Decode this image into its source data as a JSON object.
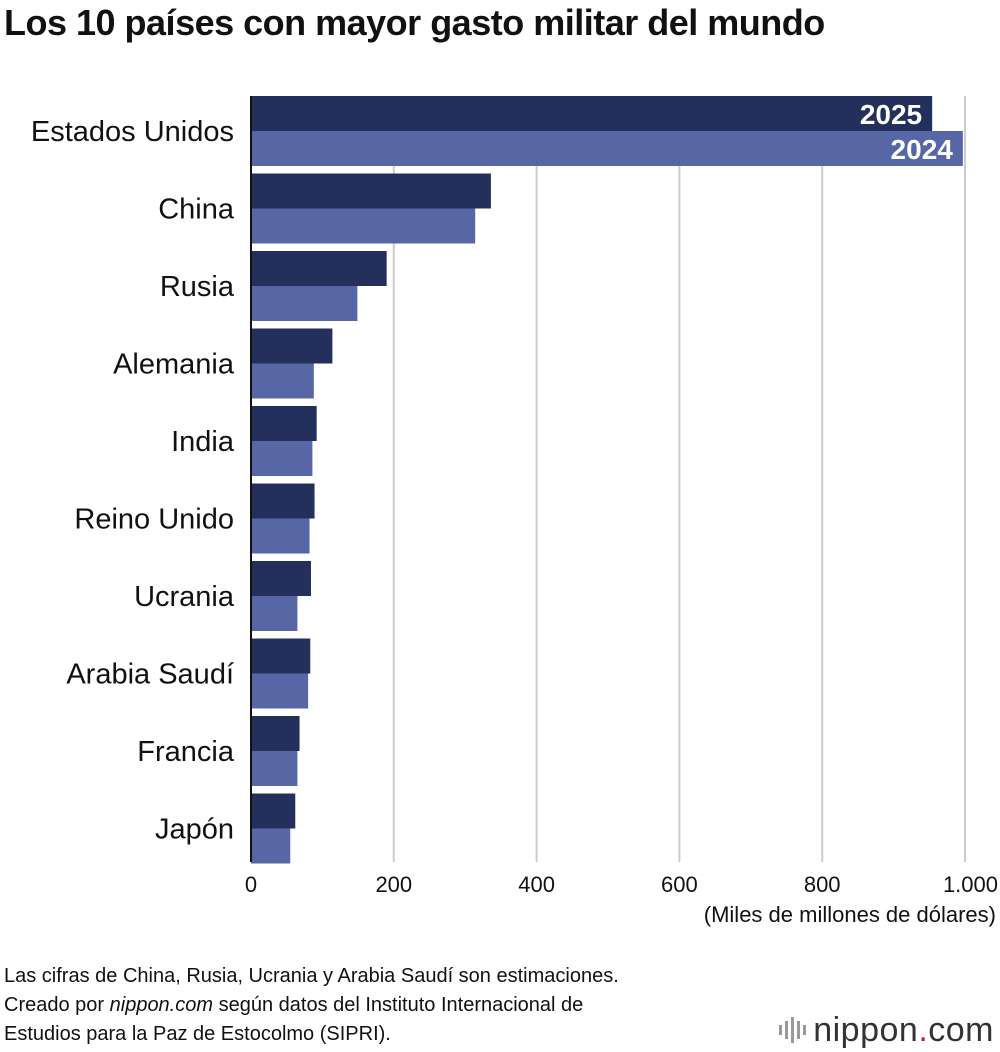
{
  "title": "Los 10 países con mayor gasto militar del mundo",
  "chart_data": {
    "type": "bar",
    "orientation": "horizontal",
    "categories": [
      "Estados Unidos",
      "China",
      "Rusia",
      "Alemania",
      "India",
      "Reino Unido",
      "Ucrania",
      "Arabia Saudí",
      "Francia",
      "Japón"
    ],
    "series": [
      {
        "name": "2025",
        "values": [
          954,
          336,
          190,
          114,
          92,
          89,
          84,
          83,
          68,
          62
        ]
      },
      {
        "name": "2024",
        "values": [
          997,
          314,
          149,
          88,
          86,
          82,
          65,
          80,
          65,
          55
        ]
      }
    ],
    "xticks": [
      "0",
      "200",
      "400",
      "600",
      "800",
      "1.000"
    ],
    "xlim": [
      0,
      1000
    ],
    "xlabel": "(Miles de millones de dólares)",
    "grid": true,
    "colors": {
      "2025": "#24305c",
      "2024": "#5767a6"
    },
    "legend": "inline labels on first bar pair"
  },
  "notes": {
    "line1": "Las cifras de China, Rusia, Ucrania y Arabia Saudí son estimaciones.",
    "line2_prefix": "Creado por ",
    "line2_site": "nippon.com",
    "line2_suffix": " según datos del Instituto Internacional de",
    "line3": "Estudios para la Paz de Estocolmo (SIPRI)."
  },
  "logo": {
    "text_main": "nippon",
    "text_dot": ".",
    "text_tld": "com"
  }
}
